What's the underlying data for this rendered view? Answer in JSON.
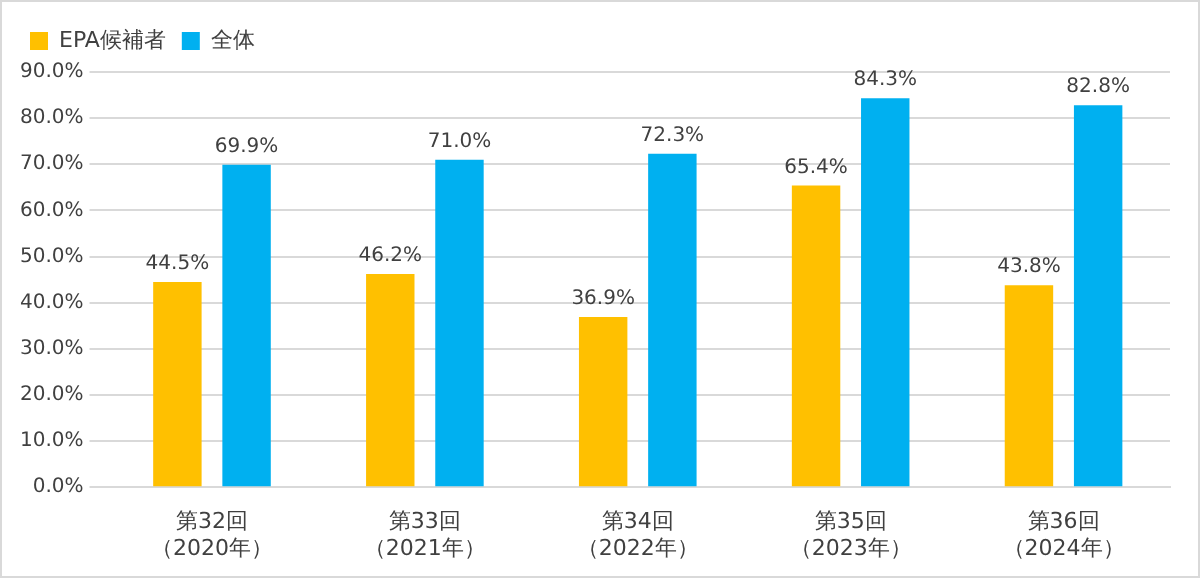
{
  "chart_data": {
    "type": "bar",
    "categories": [
      "第32回（2020年）",
      "第33回（2021年）",
      "第34回（2022年）",
      "第35回（2023年）",
      "第36回（2024年）"
    ],
    "series": [
      {
        "name": "EPA候補者",
        "color": "#ffc000",
        "values": [
          44.5,
          46.2,
          36.9,
          65.4,
          43.8
        ],
        "value_labels": [
          "44.5%",
          "46.2%",
          "36.9%",
          "65.4%",
          "43.8%"
        ]
      },
      {
        "name": "全体",
        "color": "#00b0f0",
        "values": [
          69.9,
          71.0,
          72.3,
          84.3,
          82.8
        ],
        "value_labels": [
          "69.9%",
          "71.0%",
          "72.3%",
          "84.3%",
          "82.8%"
        ]
      }
    ],
    "ylim": [
      0,
      90
    ],
    "yticks": [
      {
        "value": 0,
        "label": "0.0%"
      },
      {
        "value": 10,
        "label": "10.0%"
      },
      {
        "value": 20,
        "label": "20.0%"
      },
      {
        "value": 30,
        "label": "30.0%"
      },
      {
        "value": 40,
        "label": "40.0%"
      },
      {
        "value": 50,
        "label": "50.0%"
      },
      {
        "value": 60,
        "label": "60.0%"
      },
      {
        "value": 70,
        "label": "70.0%"
      },
      {
        "value": 80,
        "label": "80.0%"
      },
      {
        "value": 90,
        "label": "90.0%"
      }
    ],
    "grid": "y",
    "legend": "top left"
  }
}
